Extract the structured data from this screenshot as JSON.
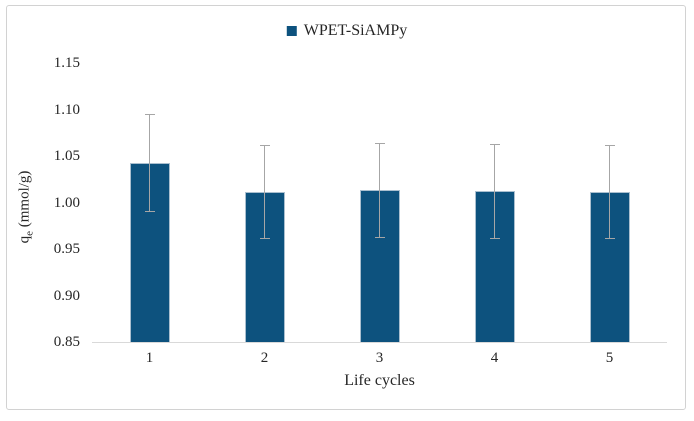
{
  "legend": {
    "items": [
      {
        "label": "WPET-SiAMPy",
        "marker": "square-icon"
      }
    ]
  },
  "axis": {
    "ylabel_base": "q",
    "ylabel_sub": "e",
    "ylabel_rest": " (mmol/g)"
  },
  "chart_data": {
    "type": "bar",
    "title": "",
    "categories": [
      "1",
      "2",
      "3",
      "4",
      "5"
    ],
    "series": [
      {
        "name": "WPET-SiAMPy",
        "values": [
          1.042,
          1.011,
          1.013,
          1.012,
          1.011
        ],
        "error_plus": [
          0.053,
          0.051,
          0.051,
          0.051,
          0.051
        ],
        "error_minus": [
          0.052,
          0.05,
          0.051,
          0.051,
          0.05
        ]
      }
    ],
    "xlabel": "Life cycles",
    "ylabel": "qe (mmol/g)",
    "ylim": [
      0.85,
      1.15
    ],
    "yticks": [
      "0.85",
      "0.90",
      "0.95",
      "1.00",
      "1.05",
      "1.10",
      "1.15"
    ],
    "grid": false,
    "legend_position": "top-center",
    "colors": {
      "bar_fill": "#0d527e",
      "bar_border": "#aabfcf",
      "error_bar": "#a6a6a6",
      "axis_line": "#d9d9d9",
      "text": "#262626",
      "figure_border": "#d2d2d2",
      "background": "#ffffff"
    }
  }
}
